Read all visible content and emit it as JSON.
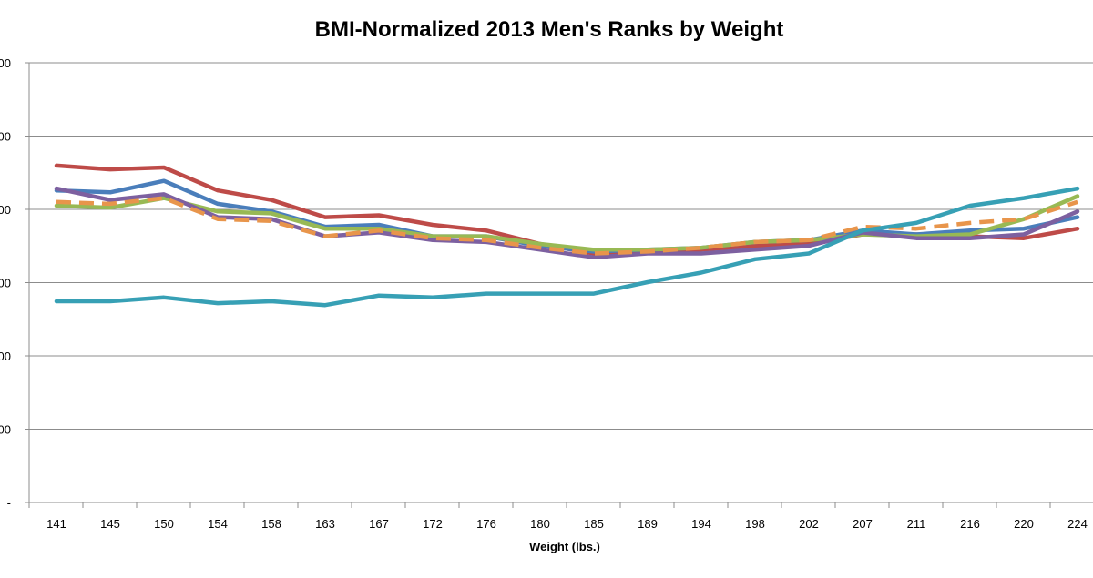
{
  "chart_data": {
    "type": "line",
    "title": "BMI-Normalized 2013 Men's Ranks by Weight",
    "xlabel": "Weight (lbs.)",
    "ylabel": "",
    "categories": [
      "141",
      "145",
      "150",
      "154",
      "158",
      "163",
      "167",
      "172",
      "176",
      "180",
      "185",
      "189",
      "194",
      "198",
      "202",
      "207",
      "211",
      "216",
      "220",
      "224"
    ],
    "y_tick_labels": [
      "00",
      "00",
      "00",
      "00",
      "00",
      "00",
      "-"
    ],
    "grid": true,
    "legend": "none",
    "series": [
      {
        "color": "#BE4B48",
        "dashed": false,
        "values": [
          0.61,
          0.59,
          0.6,
          0.48,
          0.43,
          0.34,
          0.35,
          0.3,
          0.27,
          0.2,
          0.15,
          0.16,
          0.17,
          0.19,
          0.2,
          0.25,
          0.25,
          0.24,
          0.23,
          0.28
        ]
      },
      {
        "color": "#4A7EBB",
        "dashed": false,
        "values": [
          0.48,
          0.47,
          0.53,
          0.41,
          0.37,
          0.29,
          0.3,
          0.24,
          0.24,
          0.19,
          0.16,
          0.17,
          0.18,
          0.21,
          0.22,
          0.27,
          0.25,
          0.27,
          0.28,
          0.34
        ]
      },
      {
        "color": "#98B954",
        "dashed": false,
        "values": [
          0.4,
          0.39,
          0.44,
          0.37,
          0.36,
          0.28,
          0.28,
          0.24,
          0.24,
          0.2,
          0.17,
          0.17,
          0.18,
          0.21,
          0.22,
          0.25,
          0.24,
          0.25,
          0.33,
          0.45
        ]
      },
      {
        "color": "#7D60A0",
        "dashed": false,
        "values": [
          0.49,
          0.43,
          0.46,
          0.34,
          0.33,
          0.24,
          0.26,
          0.22,
          0.21,
          0.17,
          0.13,
          0.15,
          0.15,
          0.17,
          0.19,
          0.26,
          0.23,
          0.23,
          0.25,
          0.37
        ]
      },
      {
        "color": "#E8954B",
        "dashed": true,
        "values": [
          0.42,
          0.41,
          0.44,
          0.33,
          0.32,
          0.24,
          0.27,
          0.23,
          0.22,
          0.18,
          0.15,
          0.16,
          0.18,
          0.21,
          0.22,
          0.29,
          0.28,
          0.31,
          0.33,
          0.42
        ]
      },
      {
        "color": "#37A0B5",
        "dashed": false,
        "values": [
          -0.1,
          -0.1,
          -0.08,
          -0.11,
          -0.1,
          -0.12,
          -0.07,
          -0.08,
          -0.06,
          -0.06,
          -0.06,
          0.0,
          0.05,
          0.12,
          0.15,
          0.27,
          0.31,
          0.4,
          0.44,
          0.49
        ]
      }
    ]
  }
}
